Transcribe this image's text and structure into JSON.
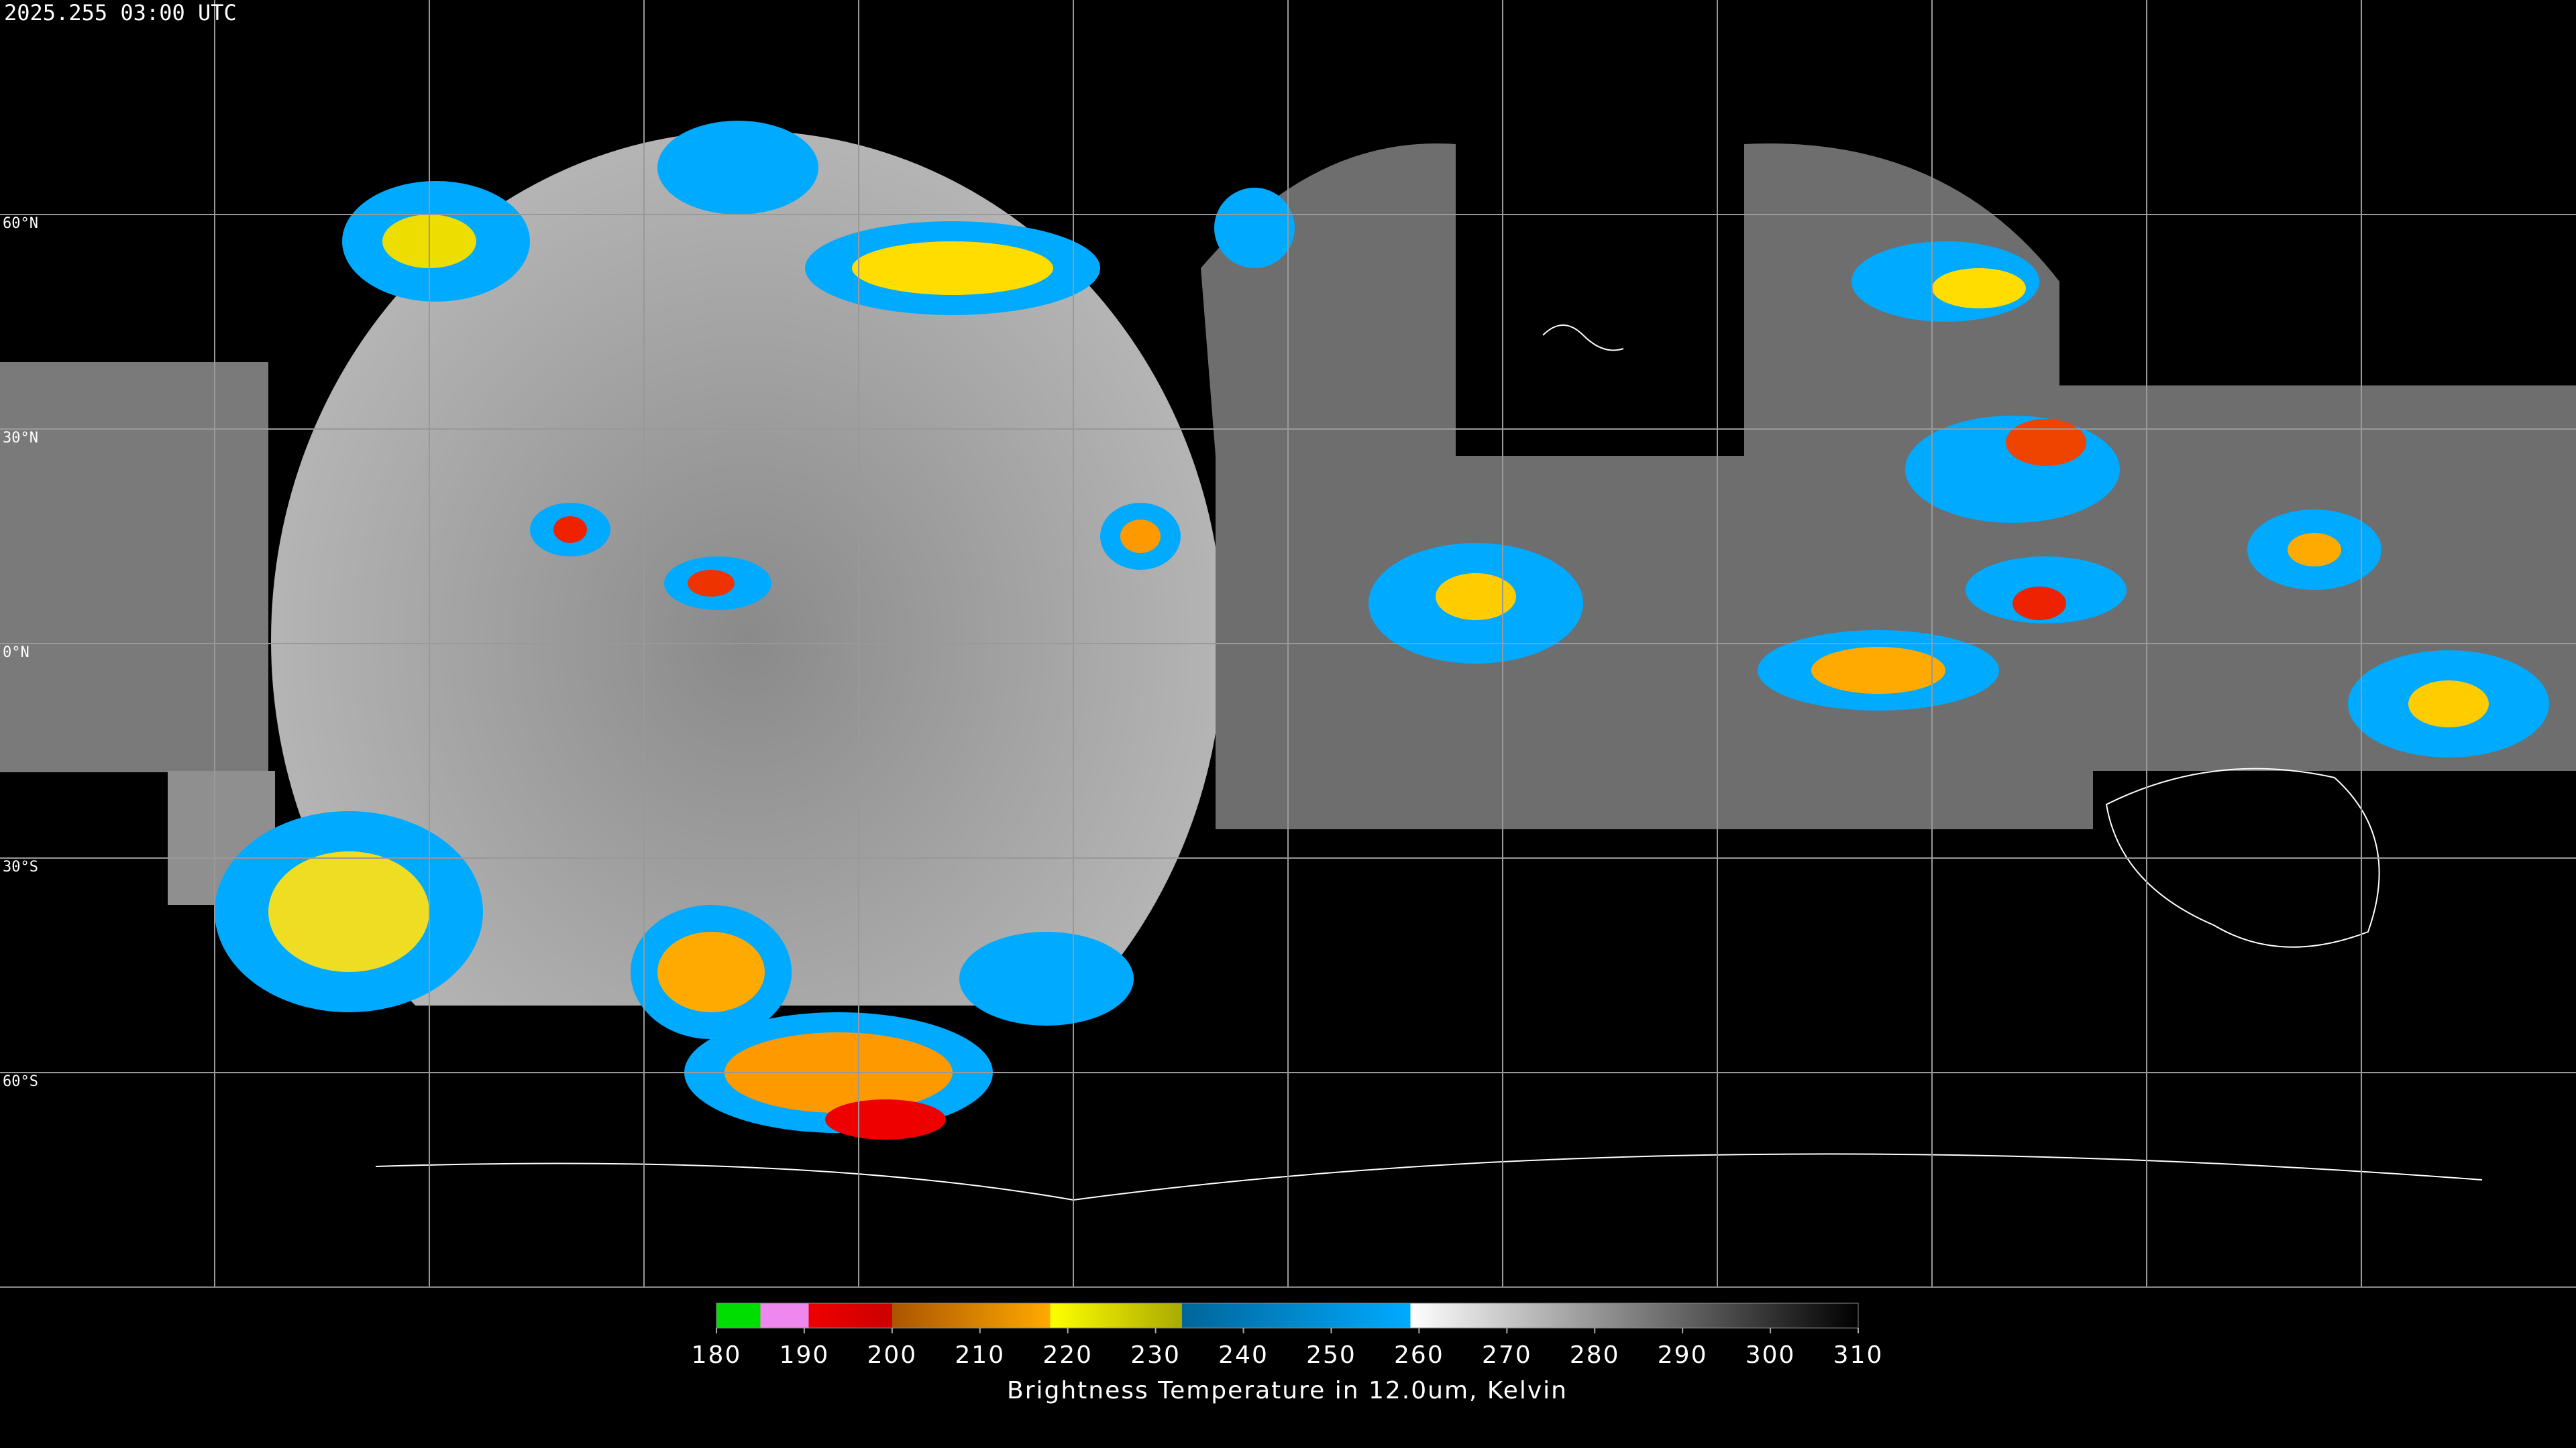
{
  "title": "2025.255 03:00 UTC",
  "map": {
    "xlim": [
      -180,
      180
    ],
    "ylim": [
      -90,
      90
    ],
    "xticks": [
      -150,
      -120,
      -90,
      -60,
      -30,
      0,
      30,
      60,
      90,
      120,
      150
    ],
    "yticks": [
      {
        "value": 60,
        "label": "60°N"
      },
      {
        "value": 30,
        "label": "30°N"
      },
      {
        "value": 0,
        "label": "0°N"
      },
      {
        "value": -30,
        "label": "30°S"
      },
      {
        "value": -60,
        "label": "60°S"
      }
    ]
  },
  "colorbar": {
    "lim": [
      180,
      310
    ],
    "ticks": [
      180,
      190,
      200,
      210,
      220,
      230,
      240,
      250,
      260,
      270,
      280,
      290,
      300,
      310
    ],
    "label": "Brightness Temperature in 12.0um, Kelvin",
    "stops": [
      {
        "value": 180,
        "color": "#00dd00"
      },
      {
        "value": 185,
        "color": "#00dd00"
      },
      {
        "value": 185,
        "color": "#ee88ee"
      },
      {
        "value": 190.5,
        "color": "#ee88ee"
      },
      {
        "value": 190.5,
        "color": "#ee0000"
      },
      {
        "value": 200,
        "color": "#cc0000"
      },
      {
        "value": 200,
        "color": "#aa5500"
      },
      {
        "value": 218,
        "color": "#ffaa00"
      },
      {
        "value": 218,
        "color": "#ffff00"
      },
      {
        "value": 233,
        "color": "#aaaa00"
      },
      {
        "value": 233,
        "color": "#006699"
      },
      {
        "value": 259,
        "color": "#00aaff"
      },
      {
        "value": 259,
        "color": "#ffffff"
      },
      {
        "value": 310,
        "color": "#000000"
      }
    ]
  }
}
